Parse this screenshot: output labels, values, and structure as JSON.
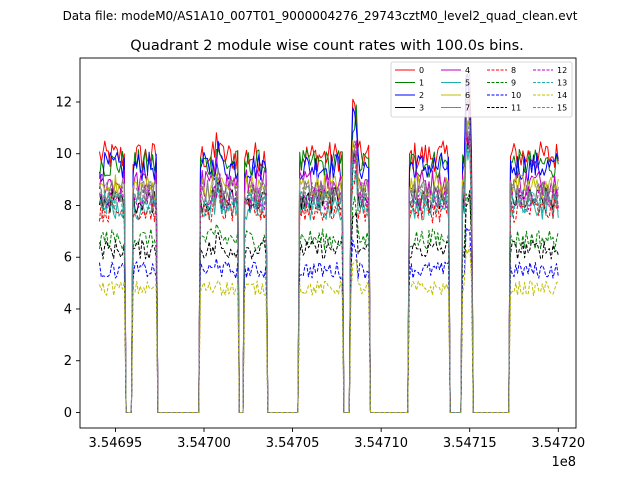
{
  "chart_data": {
    "type": "line",
    "suptitle": "Data file: modeM0/AS1A10_007T01_9000004276_29743cztM0_level2_quad_clean.evt",
    "title": "Quadrant 2 module wise count rates with 100.0s bins.",
    "xlabel": "",
    "ylabel": "",
    "x_offset_label": "1e8",
    "xlim": [
      354693000,
      354721000
    ],
    "ylim": [
      -0.6,
      13.7
    ],
    "x_ticks": [
      {
        "value": 354695000,
        "label": "3.54695"
      },
      {
        "value": 354700000,
        "label": "3.54700"
      },
      {
        "value": 354705000,
        "label": "3.54705"
      },
      {
        "value": 354710000,
        "label": "3.54710"
      },
      {
        "value": 354715000,
        "label": "3.54715"
      },
      {
        "value": 354720000,
        "label": "3.54720"
      }
    ],
    "y_ticks": [
      {
        "value": 0,
        "label": "0"
      },
      {
        "value": 2,
        "label": "2"
      },
      {
        "value": 4,
        "label": "4"
      },
      {
        "value": 6,
        "label": "6"
      },
      {
        "value": 8,
        "label": "8"
      },
      {
        "value": 10,
        "label": "10"
      },
      {
        "value": 12,
        "label": "12"
      }
    ],
    "grid": false,
    "legend_position": "top-right",
    "bin_seconds": 100,
    "x_start": 354694100,
    "x_end": 354720000,
    "active_windows": [
      [
        354694100,
        354695500
      ],
      [
        354696000,
        354697300
      ],
      [
        354699800,
        354701900
      ],
      [
        354702300,
        354703500
      ],
      [
        354705400,
        354707800
      ],
      [
        354708300,
        354709300
      ],
      [
        354711600,
        354713800
      ],
      [
        354714600,
        354715100
      ],
      [
        354717300,
        354720000
      ]
    ],
    "spikes": [
      {
        "x": 354708500,
        "factor": 1.18
      },
      {
        "x": 354714900,
        "factor": 1.3
      },
      {
        "x": 354700800,
        "factor": 1.06
      }
    ],
    "series": [
      {
        "name": "0",
        "color": "#ff0000",
        "dash": "solid",
        "level": 9.9
      },
      {
        "name": "1",
        "color": "#008000",
        "dash": "solid",
        "level": 9.6
      },
      {
        "name": "2",
        "color": "#0000ff",
        "dash": "solid",
        "level": 9.5
      },
      {
        "name": "3",
        "color": "#000000",
        "dash": "solid",
        "level": 8.2
      },
      {
        "name": "4",
        "color": "#bf00bf",
        "dash": "solid",
        "level": 8.9
      },
      {
        "name": "5",
        "color": "#20b2aa",
        "dash": "solid",
        "level": 7.9
      },
      {
        "name": "6",
        "color": "#bfbf00",
        "dash": "solid",
        "level": 8.7
      },
      {
        "name": "7",
        "color": "#808080",
        "dash": "solid",
        "level": 8.5
      },
      {
        "name": "8",
        "color": "#ff0000",
        "dash": "dashed",
        "level": 7.8
      },
      {
        "name": "9",
        "color": "#008000",
        "dash": "dashed",
        "level": 6.7
      },
      {
        "name": "10",
        "color": "#0000ff",
        "dash": "dashed",
        "level": 5.5
      },
      {
        "name": "11",
        "color": "#000000",
        "dash": "dashed",
        "level": 6.3
      },
      {
        "name": "12",
        "color": "#bf00bf",
        "dash": "dashed",
        "level": 8.3
      },
      {
        "name": "13",
        "color": "#20b2aa",
        "dash": "dashed",
        "level": 8.1
      },
      {
        "name": "14",
        "color": "#bfbf00",
        "dash": "dashed",
        "level": 4.8
      },
      {
        "name": "15",
        "color": "#808080",
        "dash": "dashed",
        "level": 8.4
      }
    ]
  }
}
